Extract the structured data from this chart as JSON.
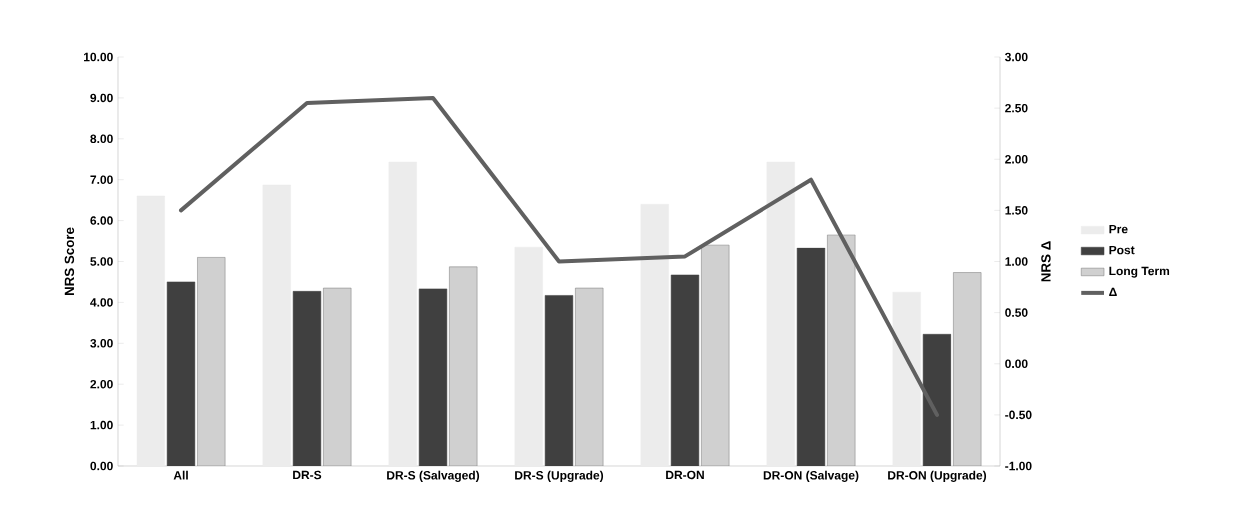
{
  "chart_data": {
    "type": "bar",
    "ylabel": "NRS Score",
    "y2label": "NRS Δ",
    "categories": [
      "All",
      "DR-S",
      "DR-S (Salvaged)",
      "DR-S (Upgrade)",
      "DR-ON",
      "DR-ON (Salvage)",
      "DR-ON (Upgrade)"
    ],
    "series": [
      {
        "name": "Pre",
        "color": "#ececec",
        "values": [
          6.6,
          6.87,
          7.43,
          5.35,
          6.4,
          7.43,
          4.25
        ]
      },
      {
        "name": "Post",
        "color": "#404040",
        "values": [
          4.5,
          4.27,
          4.33,
          4.17,
          4.67,
          5.33,
          3.22
        ]
      },
      {
        "name": "Long Term",
        "color": "#d0d0d0",
        "values": [
          5.1,
          4.35,
          4.87,
          4.35,
          5.4,
          5.65,
          4.73
        ]
      },
      {
        "name": "Δ",
        "color": "#606060",
        "type": "line",
        "axis": "y2",
        "values": [
          1.5,
          2.55,
          2.6,
          1.0,
          1.05,
          1.8,
          -0.5
        ]
      }
    ],
    "ylim": [
      0,
      10
    ],
    "yticks": [
      {
        "value": 0,
        "label": "0.00"
      },
      {
        "value": 1,
        "label": "1.00"
      },
      {
        "value": 2,
        "label": "2.00"
      },
      {
        "value": 3,
        "label": "3.00"
      },
      {
        "value": 4,
        "label": "4.00"
      },
      {
        "value": 5,
        "label": "5.00"
      },
      {
        "value": 6,
        "label": "6.00"
      },
      {
        "value": 7,
        "label": "7.00"
      },
      {
        "value": 8,
        "label": "8.00"
      },
      {
        "value": 9,
        "label": "9.00"
      },
      {
        "value": 10,
        "label": "10.00"
      }
    ],
    "y2lim": [
      -1,
      3
    ],
    "y2ticks": [
      {
        "value": -1,
        "label": "-1.00"
      },
      {
        "value": -0.5,
        "label": "-0.50"
      },
      {
        "value": 0,
        "label": "0.00"
      },
      {
        "value": 0.5,
        "label": "0.50"
      },
      {
        "value": 1,
        "label": "1.00"
      },
      {
        "value": 1.5,
        "label": "1.50"
      },
      {
        "value": 2,
        "label": "2.00"
      },
      {
        "value": 2.5,
        "label": "2.50"
      },
      {
        "value": 3,
        "label": "3.00"
      }
    ],
    "legend": "right",
    "line_style": "solid",
    "marker": "none"
  }
}
